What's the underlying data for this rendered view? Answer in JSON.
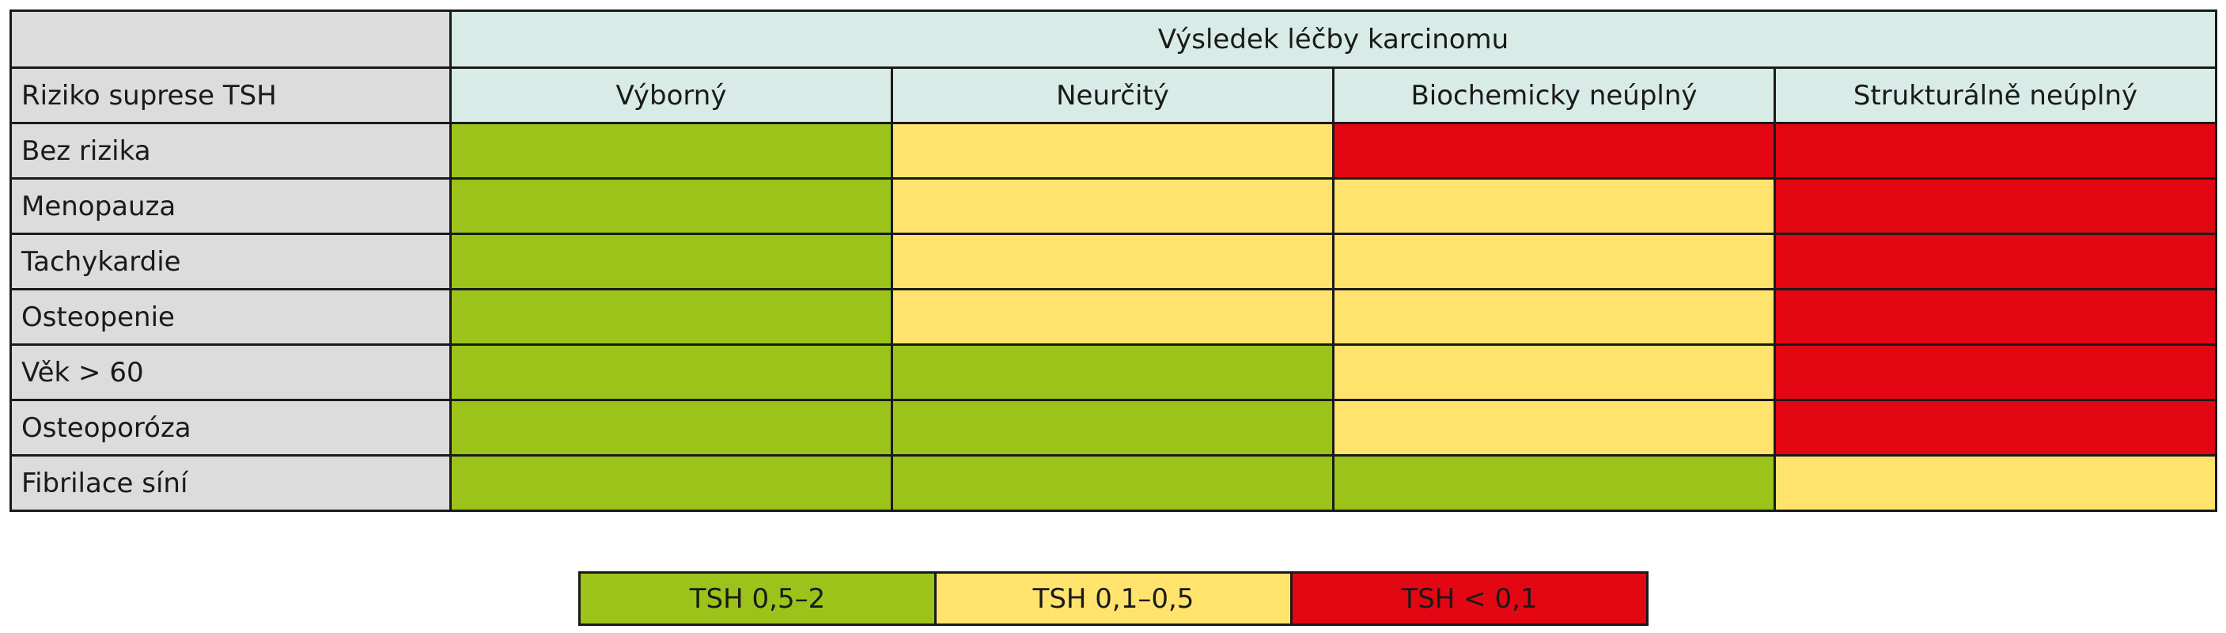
{
  "table": {
    "super_header": "Výsledek léčby karcinomu",
    "row_header_title": "Riziko suprese TSH",
    "columns": [
      "Výborný",
      "Neurčitý",
      "Biochemicky neúplný",
      "Strukturálně neúplný"
    ],
    "rows": [
      {
        "label": "Bez rizika",
        "levels": [
          "green",
          "yellow",
          "red",
          "red"
        ]
      },
      {
        "label": "Menopauza",
        "levels": [
          "green",
          "yellow",
          "yellow",
          "red"
        ]
      },
      {
        "label": "Tachykardie",
        "levels": [
          "green",
          "yellow",
          "yellow",
          "red"
        ]
      },
      {
        "label": "Osteopenie",
        "levels": [
          "green",
          "yellow",
          "yellow",
          "red"
        ]
      },
      {
        "label": "Věk > 60",
        "levels": [
          "green",
          "green",
          "yellow",
          "red"
        ]
      },
      {
        "label": "Osteoporóza",
        "levels": [
          "green",
          "green",
          "yellow",
          "red"
        ]
      },
      {
        "label": "Fibrilace síní",
        "levels": [
          "green",
          "green",
          "green",
          "yellow"
        ]
      }
    ]
  },
  "legend": [
    {
      "key": "green",
      "label": "TSH 0,5–2"
    },
    {
      "key": "yellow",
      "label": "TSH 0,1–0,5"
    },
    {
      "key": "red",
      "label": "TSH < 0,1"
    }
  ],
  "colors": {
    "green": "#9bc31a",
    "yellow": "#ffe36c",
    "red": "#e30613",
    "header_bg": "#d8ebe7",
    "label_bg": "#dcdcdc"
  }
}
